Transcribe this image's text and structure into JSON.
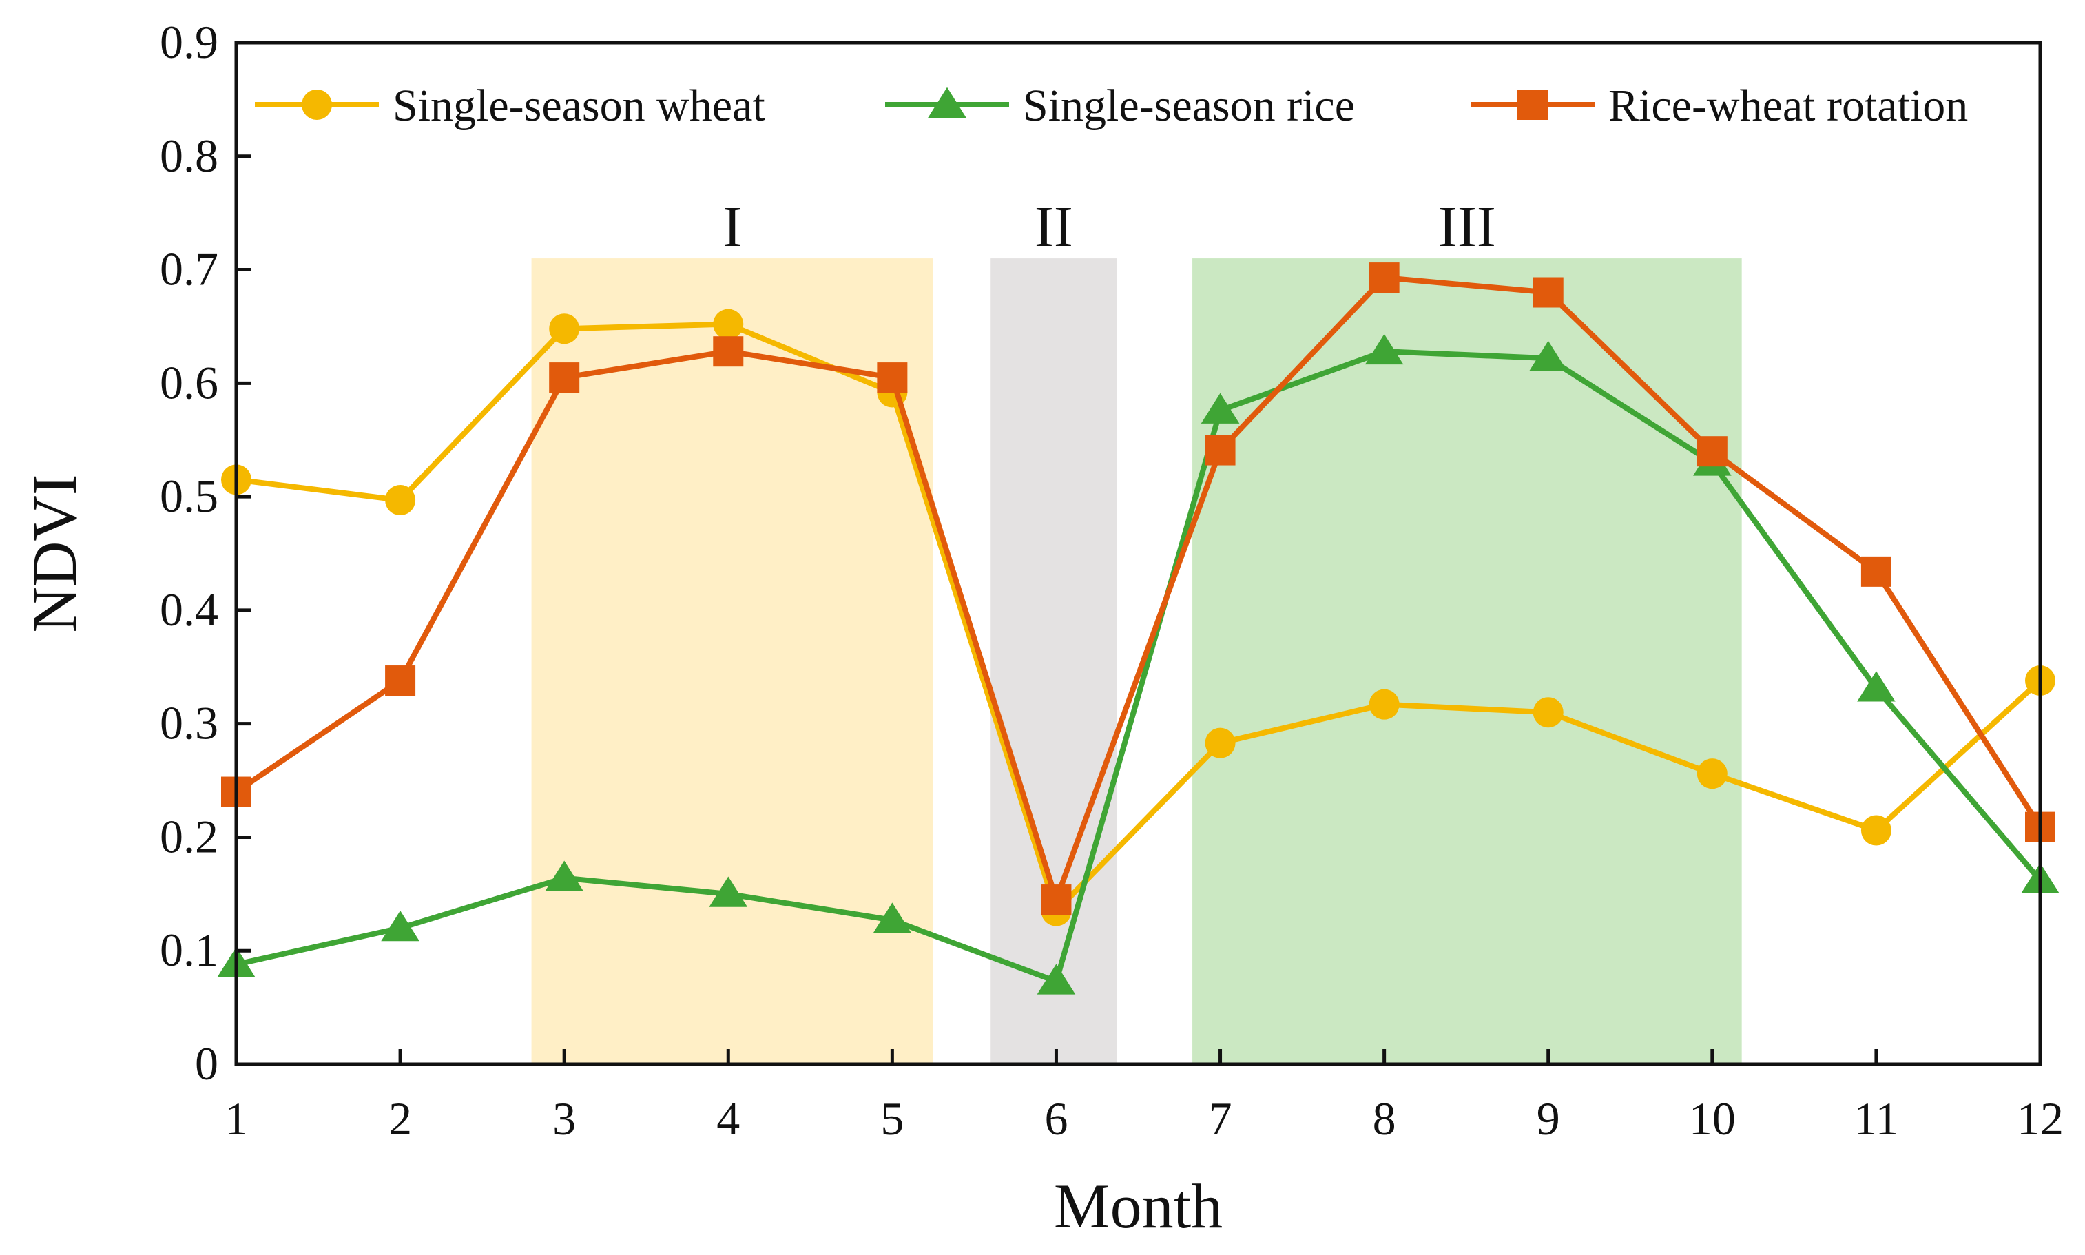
{
  "chart_data": {
    "type": "line",
    "title": "",
    "xlabel": "Month",
    "ylabel": "NDVI",
    "x": [
      1,
      2,
      3,
      4,
      5,
      6,
      7,
      8,
      9,
      10,
      11,
      12
    ],
    "x_tick_labels": [
      "1",
      "2",
      "3",
      "4",
      "5",
      "6",
      "7",
      "8",
      "9",
      "10",
      "11",
      "12"
    ],
    "xlim": [
      1,
      12
    ],
    "ylim": [
      0,
      0.9
    ],
    "y_ticks": [
      0,
      0.1,
      0.2,
      0.3,
      0.4,
      0.5,
      0.6,
      0.7,
      0.8,
      0.9
    ],
    "y_tick_labels": [
      "0",
      "0.1",
      "0.2",
      "0.3",
      "0.4",
      "0.5",
      "0.6",
      "0.7",
      "0.8",
      "0.9"
    ],
    "grid": false,
    "legend_position": "top",
    "series": [
      {
        "name": "Single-season wheat",
        "marker": "circle",
        "color": "#F5B800",
        "values": [
          0.515,
          0.497,
          0.648,
          0.652,
          0.592,
          0.135,
          0.283,
          0.317,
          0.31,
          0.256,
          0.206,
          0.338
        ]
      },
      {
        "name": "Single-season rice",
        "marker": "triangle",
        "color": "#3FA535",
        "values": [
          0.088,
          0.12,
          0.164,
          0.15,
          0.127,
          0.073,
          0.576,
          0.628,
          0.622,
          0.53,
          0.331,
          0.162
        ]
      },
      {
        "name": "Rice-wheat rotation",
        "marker": "square",
        "color": "#E15A0C",
        "values": [
          0.24,
          0.338,
          0.605,
          0.628,
          0.605,
          0.145,
          0.541,
          0.693,
          0.68,
          0.54,
          0.434,
          0.209
        ]
      }
    ],
    "bands": [
      {
        "label": "I",
        "x_start": 2.8,
        "x_end": 5.25,
        "y_top": 0.71,
        "color": "#FFEBBA"
      },
      {
        "label": "II",
        "x_start": 5.6,
        "x_end": 6.37,
        "y_top": 0.71,
        "color": "#DEDCDC"
      },
      {
        "label": "III",
        "x_start": 6.83,
        "x_end": 10.18,
        "y_top": 0.71,
        "color": "#BFE3B5"
      }
    ]
  }
}
